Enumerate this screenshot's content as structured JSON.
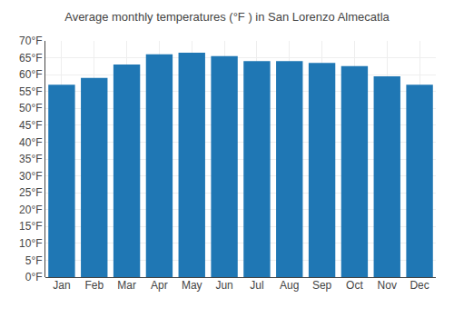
{
  "chart_data": {
    "type": "bar",
    "title": "Average monthly temperatures (°F ) in San Lorenzo Almecatla",
    "categories": [
      "Jan",
      "Feb",
      "Mar",
      "Apr",
      "May",
      "Jun",
      "Jul",
      "Aug",
      "Sep",
      "Oct",
      "Nov",
      "Dec"
    ],
    "values": [
      57,
      59,
      63,
      66,
      66.5,
      65.5,
      64,
      64,
      63.5,
      62.5,
      59.5,
      57
    ],
    "ylim": [
      0,
      70
    ],
    "yticks": [
      {
        "value": 0,
        "label": "0°F"
      },
      {
        "value": 5,
        "label": "5°F"
      },
      {
        "value": 10,
        "label": "10°F"
      },
      {
        "value": 15,
        "label": "15°F"
      },
      {
        "value": 20,
        "label": "20°F"
      },
      {
        "value": 25,
        "label": "25°F"
      },
      {
        "value": 30,
        "label": "30°F"
      },
      {
        "value": 35,
        "label": "35°F"
      },
      {
        "value": 40,
        "label": "40°F"
      },
      {
        "value": 45,
        "label": "45°F"
      },
      {
        "value": 50,
        "label": "50°F"
      },
      {
        "value": 55,
        "label": "55°F"
      },
      {
        "value": 60,
        "label": "60°F"
      },
      {
        "value": 65,
        "label": "65°F"
      },
      {
        "value": 70,
        "label": "70°F"
      }
    ],
    "grid": true
  }
}
